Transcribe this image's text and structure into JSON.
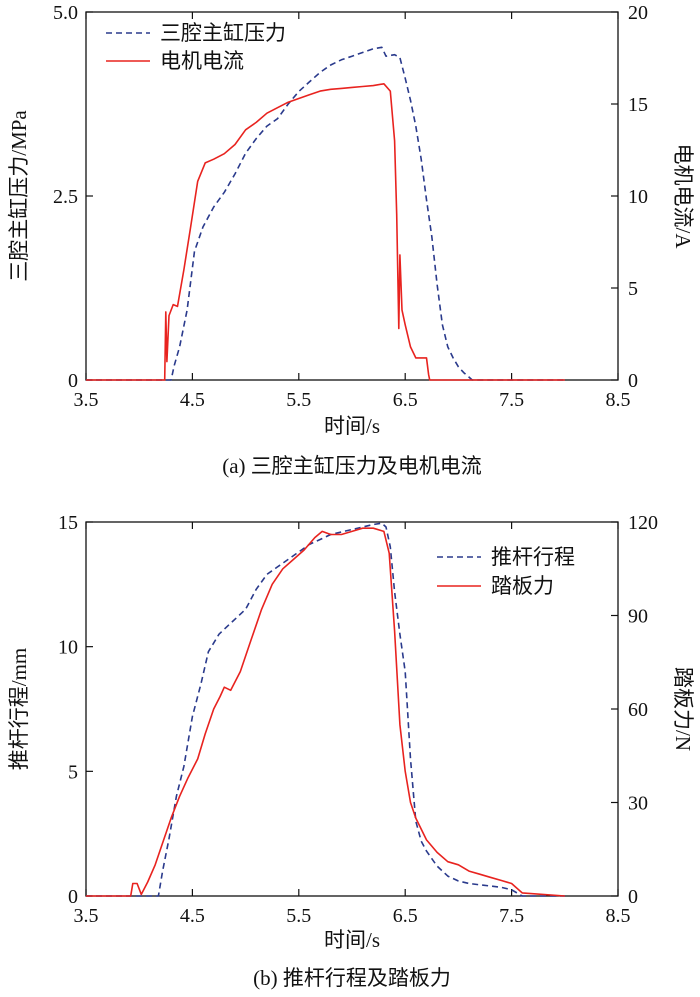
{
  "chart_data": [
    {
      "type": "line",
      "caption": "(a) 三腔主缸压力及电机电流",
      "xlabel": "时间/s",
      "ylabel_left": "三腔主缸压力/MPa",
      "ylabel_right": "电机电流/A",
      "xlim": [
        3.5,
        8.5
      ],
      "xticks": [
        3.5,
        4.5,
        5.5,
        6.5,
        7.5,
        8.5
      ],
      "ylim_left": [
        0,
        5
      ],
      "yticks_left": [
        0,
        2.5,
        5.0
      ],
      "ytick_labels_left": [
        "0",
        "2.5",
        "5.0"
      ],
      "ylim_right": [
        0,
        20
      ],
      "yticks_right": [
        0,
        5,
        10,
        15,
        20
      ],
      "legend_position": "top-left",
      "series": [
        {
          "name": "三腔主缸压力",
          "axis": "left",
          "color": "#2a3a8c",
          "style": "dashed",
          "x": [
            3.5,
            4.3,
            4.33,
            4.38,
            4.45,
            4.52,
            4.6,
            4.7,
            4.8,
            4.9,
            5.0,
            5.1,
            5.2,
            5.3,
            5.4,
            5.5,
            5.6,
            5.7,
            5.8,
            5.9,
            6.0,
            6.1,
            6.2,
            6.28,
            6.32,
            6.4,
            6.45,
            6.5,
            6.55,
            6.6,
            6.65,
            6.7,
            6.75,
            6.8,
            6.85,
            6.9,
            6.95,
            7.0,
            7.05,
            7.1,
            7.13,
            8.0
          ],
          "y": [
            0,
            0,
            0.2,
            0.45,
            0.95,
            1.75,
            2.08,
            2.35,
            2.55,
            2.8,
            3.08,
            3.28,
            3.45,
            3.55,
            3.75,
            3.92,
            4.05,
            4.18,
            4.28,
            4.35,
            4.4,
            4.45,
            4.5,
            4.52,
            4.4,
            4.42,
            4.38,
            4.1,
            3.8,
            3.45,
            3.0,
            2.45,
            1.95,
            1.3,
            0.75,
            0.45,
            0.3,
            0.18,
            0.1,
            0.04,
            0,
            0
          ]
        },
        {
          "name": "电机电流",
          "axis": "right",
          "color": "#e8231f",
          "style": "solid",
          "x": [
            3.5,
            4.24,
            4.25,
            4.26,
            4.28,
            4.32,
            4.36,
            4.42,
            4.48,
            4.55,
            4.62,
            4.7,
            4.8,
            4.9,
            5.0,
            5.1,
            5.2,
            5.3,
            5.4,
            5.5,
            5.6,
            5.7,
            5.8,
            5.9,
            6.0,
            6.1,
            6.2,
            6.3,
            6.36,
            6.4,
            6.42,
            6.44,
            6.45,
            6.47,
            6.5,
            6.55,
            6.6,
            6.7,
            6.72,
            6.73,
            7.0,
            8.0
          ],
          "y": [
            0,
            0,
            3.7,
            1.0,
            3.5,
            4.1,
            4.0,
            6.0,
            8.2,
            10.8,
            11.8,
            12.0,
            12.3,
            12.8,
            13.6,
            14.0,
            14.5,
            14.8,
            15.1,
            15.3,
            15.5,
            15.7,
            15.8,
            15.85,
            15.9,
            15.95,
            16.0,
            16.1,
            15.7,
            13.0,
            9.0,
            2.8,
            6.8,
            3.8,
            3.0,
            1.8,
            1.2,
            1.2,
            0.3,
            0.0,
            0.0,
            0.0
          ]
        }
      ]
    },
    {
      "type": "line",
      "caption": "(b) 推杆行程及踏板力",
      "xlabel": "时间/s",
      "ylabel_left": "推杆行程/mm",
      "ylabel_right": "踏板力/N",
      "xlim": [
        3.5,
        8.5
      ],
      "xticks": [
        3.5,
        4.5,
        5.5,
        6.5,
        7.5,
        8.5
      ],
      "ylim_left": [
        0,
        15
      ],
      "yticks_left": [
        0,
        5,
        10,
        15
      ],
      "ylim_right": [
        0,
        120
      ],
      "yticks_right": [
        0,
        30,
        60,
        90,
        120
      ],
      "legend_position": "top-right",
      "series": [
        {
          "name": "推杆行程",
          "axis": "left",
          "color": "#2a3a8c",
          "style": "dashed",
          "x": [
            3.5,
            4.18,
            4.22,
            4.28,
            4.35,
            4.42,
            4.5,
            4.58,
            4.65,
            4.75,
            4.85,
            5.0,
            5.1,
            5.2,
            5.3,
            5.4,
            5.5,
            5.6,
            5.7,
            5.8,
            5.9,
            6.0,
            6.1,
            6.2,
            6.28,
            6.32,
            6.36,
            6.4,
            6.45,
            6.5,
            6.55,
            6.6,
            6.65,
            6.7,
            6.8,
            6.9,
            7.0,
            7.1,
            7.2,
            7.3,
            7.4,
            7.5,
            7.6,
            8.0
          ],
          "y": [
            0,
            0,
            1.0,
            2.3,
            4.0,
            5.2,
            7.2,
            8.5,
            9.8,
            10.5,
            10.9,
            11.5,
            12.3,
            12.9,
            13.2,
            13.5,
            13.8,
            14.1,
            14.3,
            14.5,
            14.6,
            14.7,
            14.8,
            14.9,
            14.95,
            14.8,
            14.0,
            12.2,
            10.5,
            9.0,
            5.5,
            3.0,
            2.2,
            1.8,
            1.2,
            0.8,
            0.6,
            0.5,
            0.45,
            0.4,
            0.35,
            0.25,
            0,
            0
          ]
        },
        {
          "name": "踏板力",
          "axis": "right",
          "color": "#e8231f",
          "style": "solid",
          "x": [
            3.5,
            3.92,
            3.94,
            3.98,
            4.02,
            4.08,
            4.15,
            4.22,
            4.3,
            4.38,
            4.46,
            4.55,
            4.62,
            4.7,
            4.76,
            4.8,
            4.86,
            4.95,
            5.05,
            5.15,
            5.25,
            5.35,
            5.45,
            5.55,
            5.65,
            5.72,
            5.8,
            5.9,
            6.0,
            6.1,
            6.2,
            6.3,
            6.35,
            6.4,
            6.45,
            6.5,
            6.55,
            6.6,
            6.7,
            6.8,
            6.9,
            7.0,
            7.1,
            7.2,
            7.3,
            7.4,
            7.5,
            7.6,
            8.0
          ],
          "y": [
            0,
            0,
            4.0,
            4.0,
            0.5,
            4.5,
            10,
            17,
            25,
            32,
            38,
            44,
            52,
            60,
            64,
            67,
            66,
            72,
            82,
            92,
            100,
            105,
            108,
            111,
            115,
            117,
            116,
            116,
            117,
            118,
            118,
            117,
            110,
            85,
            55,
            40,
            30,
            25,
            18,
            14,
            11,
            10,
            8,
            7,
            6,
            5,
            4,
            1,
            0
          ]
        }
      ]
    }
  ]
}
